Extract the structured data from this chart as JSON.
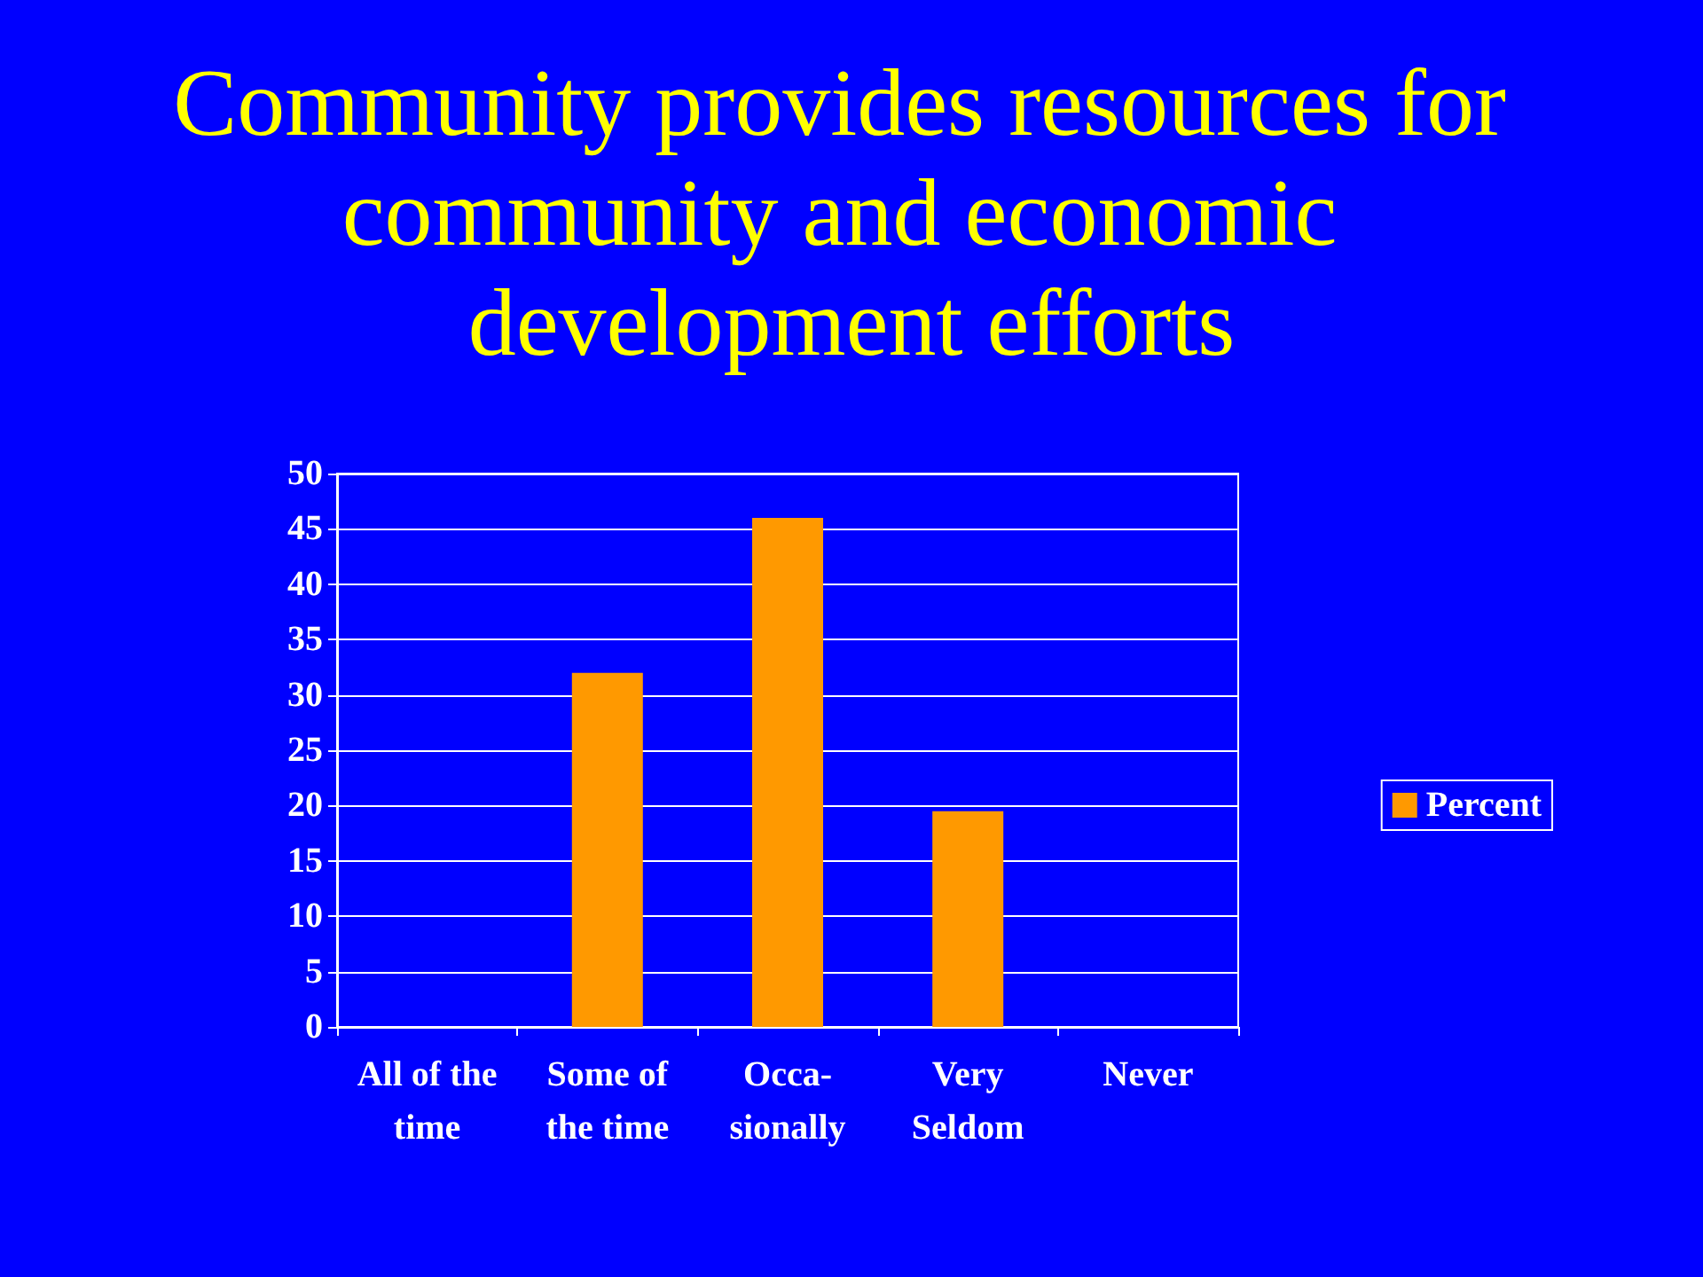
{
  "chart_data": {
    "type": "bar",
    "title": "Community provides resources for community and economic development efforts",
    "categories": [
      "All of the\ntime",
      "Some of\nthe time",
      "Occa-\nsionally",
      "Very\nSeldom",
      "Never"
    ],
    "series": [
      {
        "name": "Percent",
        "color": "#ff9900",
        "values": [
          0,
          32,
          46,
          19.5,
          0
        ]
      }
    ],
    "ylim": [
      0,
      50
    ],
    "yticks": [
      0,
      5,
      10,
      15,
      20,
      25,
      30,
      35,
      40,
      45,
      50
    ],
    "grid": "y",
    "legend": "right"
  }
}
